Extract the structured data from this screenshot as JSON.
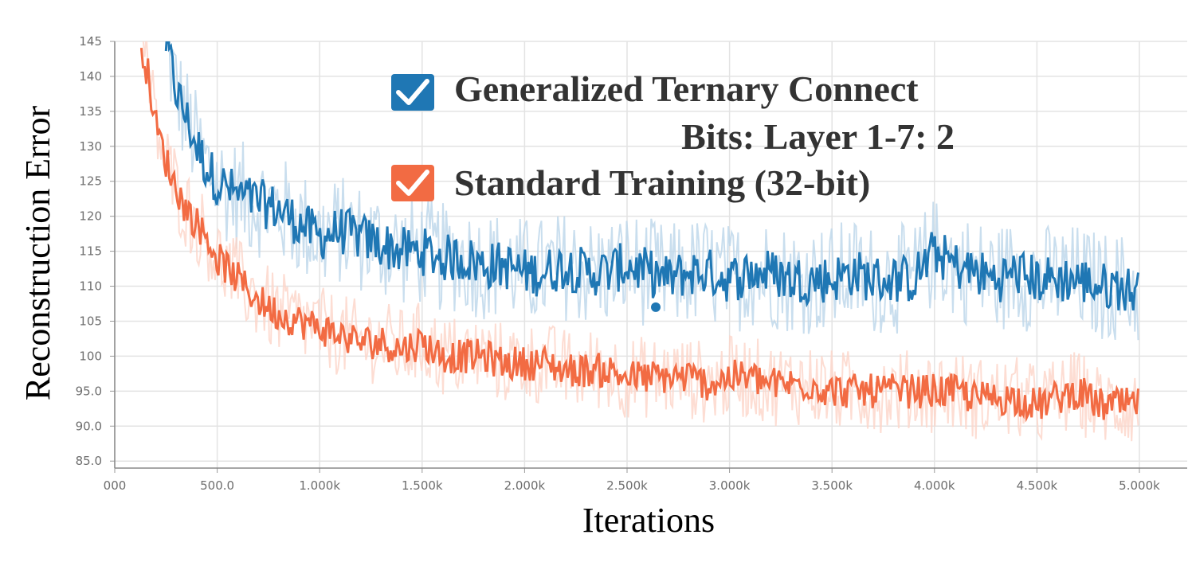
{
  "chart_data": {
    "type": "line",
    "xlabel": "Iterations",
    "ylabel": "Reconstruction Error",
    "xlim": [
      0,
      5100
    ],
    "ylim": [
      84,
      145
    ],
    "x_ticks": [
      0,
      500,
      1000,
      1500,
      2000,
      2500,
      3000,
      3500,
      4000,
      4500,
      5000
    ],
    "x_tick_labels": [
      "000",
      "500.0",
      "1.000k",
      "1.500k",
      "2.000k",
      "2.500k",
      "3.000k",
      "3.500k",
      "4.000k",
      "4.500k",
      "5.000k"
    ],
    "y_ticks": [
      85,
      90,
      95,
      100,
      105,
      110,
      115,
      120,
      125,
      130,
      135,
      140,
      145
    ],
    "y_tick_labels": [
      "85.0",
      "90.0",
      "95.0",
      "100",
      "105",
      "110",
      "115",
      "120",
      "125",
      "130",
      "135",
      "140",
      "145"
    ],
    "grid": true,
    "legend": {
      "placement": "top-center",
      "entries": [
        {
          "label_line1": "Generalized Ternary Connect",
          "label_line2": "Bits: Layer 1-7: 2",
          "color": "#1f77b4"
        },
        {
          "label_line1": "Standard Training (32-bit)",
          "label_line2": "",
          "color": "#f26b43"
        }
      ]
    },
    "series": [
      {
        "name": "Generalized Ternary Connect",
        "color": "#1f77b4",
        "raw_color": "#bcd6ea",
        "x": [
          250,
          300,
          350,
          400,
          450,
          500,
          600,
          700,
          800,
          900,
          1000,
          1100,
          1200,
          1300,
          1400,
          1500,
          1600,
          1700,
          1800,
          1900,
          2000,
          2100,
          2200,
          2300,
          2400,
          2500,
          2600,
          2700,
          2800,
          2900,
          3000,
          3100,
          3200,
          3300,
          3400,
          3500,
          3600,
          3700,
          3800,
          3900,
          4000,
          4100,
          4200,
          4300,
          4400,
          4500,
          4600,
          4700,
          4800,
          4900,
          5000
        ],
        "y": [
          145,
          138,
          134,
          130,
          127,
          125,
          123,
          122,
          121,
          119,
          117,
          118,
          117,
          116,
          115,
          115,
          114,
          114,
          113,
          113,
          112,
          112,
          113,
          112,
          112,
          113,
          112,
          111,
          112,
          112,
          111,
          112,
          112,
          111,
          111,
          111,
          112,
          111,
          111,
          111,
          115,
          113,
          112,
          111,
          112,
          111,
          111,
          111,
          110,
          110,
          109
        ],
        "marker": {
          "x": 2640,
          "y": 107
        }
      },
      {
        "name": "Standard Training (32-bit)",
        "color": "#f26b43",
        "raw_color": "#fcd5c8",
        "x": [
          130,
          170,
          200,
          250,
          300,
          350,
          400,
          450,
          500,
          600,
          700,
          800,
          900,
          1000,
          1100,
          1200,
          1300,
          1400,
          1500,
          1600,
          1700,
          1800,
          1900,
          2000,
          2100,
          2200,
          2300,
          2400,
          2500,
          2600,
          2700,
          2800,
          2900,
          3000,
          3100,
          3200,
          3300,
          3400,
          3500,
          3600,
          3700,
          3800,
          3900,
          4000,
          4100,
          4200,
          4300,
          4400,
          4500,
          4600,
          4700,
          4800,
          4900,
          5000
        ],
        "y": [
          145,
          139,
          133,
          128,
          124,
          121,
          119,
          117,
          114,
          111,
          108,
          106,
          105,
          104,
          103,
          102,
          102,
          101,
          102,
          100,
          100,
          100,
          99,
          99,
          99,
          98,
          98,
          98,
          97,
          97,
          97,
          97,
          96,
          97,
          97,
          96,
          96,
          96,
          95,
          95,
          95,
          95,
          95,
          95,
          95,
          94,
          94,
          94,
          93,
          94,
          95,
          93,
          93,
          93
        ]
      }
    ]
  }
}
